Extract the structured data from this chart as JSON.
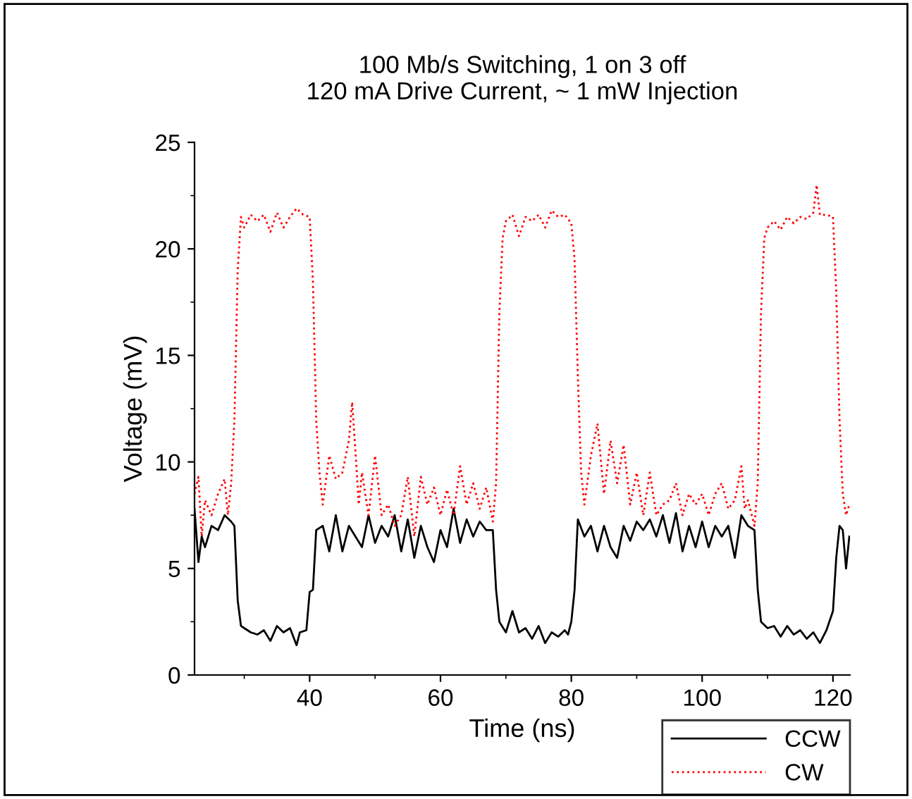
{
  "chart_data": {
    "type": "line",
    "title": "100 Mb/s Switching, 1 on 3 off\n120 mA Drive Current, ~ 1 mW Injection",
    "xlabel": "Time (ns)",
    "ylabel": "Voltage (mV)",
    "xlim": [
      22.4,
      122.6
    ],
    "xticks": [
      40,
      60,
      80,
      100,
      120
    ],
    "ylim": [
      0,
      25
    ],
    "yticks": [
      0,
      5,
      10,
      15,
      20,
      25
    ],
    "grid": false,
    "legend": "bottom right",
    "series": [
      {
        "name": "CCW",
        "color": "#000000",
        "line_style": "solid",
        "x": [
          22.4,
          23,
          23.5,
          24,
          25,
          26,
          27,
          28,
          28.5,
          29,
          29.5,
          30,
          31,
          32,
          33,
          34,
          35,
          36,
          37,
          38,
          38.5,
          39.5,
          40,
          40.5,
          41,
          42,
          43,
          44,
          45,
          46,
          47,
          48,
          49,
          50,
          51,
          52,
          53,
          54,
          55,
          56,
          57,
          58,
          59,
          60,
          61,
          62,
          63,
          64,
          65,
          66,
          67,
          68,
          68.5,
          69,
          70,
          71,
          72,
          73,
          74,
          75,
          76,
          77,
          78,
          79,
          79.5,
          80,
          80.5,
          81,
          82,
          83,
          84,
          85,
          86,
          87,
          88,
          89,
          90,
          91,
          92,
          93,
          94,
          95,
          96,
          97,
          98,
          99,
          100,
          101,
          102,
          103,
          104,
          105,
          106,
          107,
          108,
          108.5,
          109,
          110,
          111,
          112,
          113,
          114,
          115,
          116,
          117,
          118,
          119,
          120,
          120.5,
          121,
          121.5,
          122,
          122.5
        ],
        "values": [
          7.8,
          5.3,
          6.5,
          6,
          7,
          6.8,
          7.5,
          7.2,
          7,
          3.5,
          2.3,
          2.2,
          2,
          1.9,
          2.1,
          1.6,
          2.3,
          2,
          2.2,
          1.4,
          2,
          2.1,
          3.9,
          4,
          6.8,
          7,
          5.8,
          7.5,
          5.8,
          7,
          6.5,
          6,
          7.5,
          6.2,
          7,
          6.5,
          7.5,
          5.8,
          7.3,
          5.5,
          7,
          6,
          5.3,
          6.8,
          6,
          7.8,
          6.2,
          7.3,
          6.5,
          7.2,
          6.8,
          6.8,
          4,
          2.5,
          2,
          3,
          2,
          2.2,
          1.7,
          2.3,
          1.5,
          2,
          1.8,
          2.1,
          1.9,
          2.5,
          4,
          7.3,
          6.5,
          7,
          5.8,
          7,
          6,
          5.5,
          7,
          6.3,
          7.2,
          6.8,
          7.3,
          6.5,
          7.5,
          6.2,
          7.6,
          5.8,
          7,
          6,
          7.2,
          6,
          7,
          6.5,
          7,
          5.5,
          7.5,
          7,
          6.8,
          4,
          2.5,
          2.2,
          2.3,
          1.8,
          2.3,
          1.9,
          2.1,
          1.7,
          2,
          1.5,
          2.1,
          3,
          5.5,
          7,
          6.8,
          5,
          6.5
        ]
      },
      {
        "name": "CW",
        "color": "#ff0000",
        "line_style": "dotted",
        "x": [
          22.4,
          23,
          23.5,
          24,
          25,
          26,
          27,
          27.5,
          28,
          28.5,
          29,
          29.5,
          30,
          31,
          32,
          33,
          34,
          35,
          36,
          37,
          38,
          39,
          40,
          40.5,
          41,
          41.5,
          42,
          43,
          44,
          45,
          46,
          46.5,
          47,
          47.5,
          48,
          49,
          50,
          51,
          52,
          53,
          54,
          55,
          56,
          57,
          58,
          59,
          60,
          61,
          62,
          63,
          64,
          65,
          66,
          67,
          68,
          68.5,
          69,
          69.5,
          70,
          71,
          72,
          73,
          74,
          75,
          76,
          77,
          78,
          79,
          80,
          80.5,
          81,
          81.5,
          82,
          83,
          84,
          85,
          86,
          87,
          88,
          89,
          90,
          91,
          92,
          93,
          94,
          95,
          96,
          97,
          98,
          99,
          100,
          101,
          102,
          103,
          104,
          105,
          106,
          106.5,
          107,
          108,
          108.5,
          109,
          109.5,
          110,
          111,
          112,
          113,
          114,
          115,
          116,
          117,
          117.5,
          118,
          119,
          120,
          120.5,
          121,
          121.5,
          122,
          122.5
        ],
        "values": [
          8.5,
          9.3,
          6.5,
          8.2,
          7.5,
          8.5,
          9.2,
          7.5,
          9,
          12,
          19,
          21.5,
          21,
          21.6,
          21.3,
          21.6,
          20.8,
          21.7,
          21,
          21.5,
          21.9,
          21.6,
          21.5,
          18.5,
          12,
          9.5,
          8,
          10.3,
          9.2,
          9.5,
          11,
          12.8,
          10.5,
          8,
          9.5,
          7.5,
          10.3,
          7.5,
          8,
          7,
          7.5,
          9.3,
          6.5,
          9.3,
          8,
          8.8,
          7.5,
          8.7,
          7.5,
          9.8,
          8,
          9,
          7.8,
          8.8,
          7.2,
          9,
          17,
          20.5,
          21.3,
          21.6,
          20.6,
          21.5,
          21.3,
          21.6,
          21,
          21.8,
          21.5,
          21.6,
          21.2,
          19.5,
          14,
          9.5,
          8,
          10.3,
          11.8,
          8.5,
          11,
          9,
          10.8,
          8,
          9.5,
          7.5,
          9.5,
          7.5,
          8,
          8.2,
          9,
          7.5,
          8.5,
          8,
          8.5,
          7.5,
          8.5,
          9,
          7.8,
          8.2,
          9.8,
          7.8,
          8.2,
          7,
          9,
          17,
          20.5,
          21,
          21.3,
          20.9,
          21.5,
          21.2,
          21.5,
          21.4,
          21.7,
          23,
          21.6,
          21.6,
          21.5,
          18,
          12,
          8.5,
          7.5,
          8
        ]
      }
    ]
  }
}
